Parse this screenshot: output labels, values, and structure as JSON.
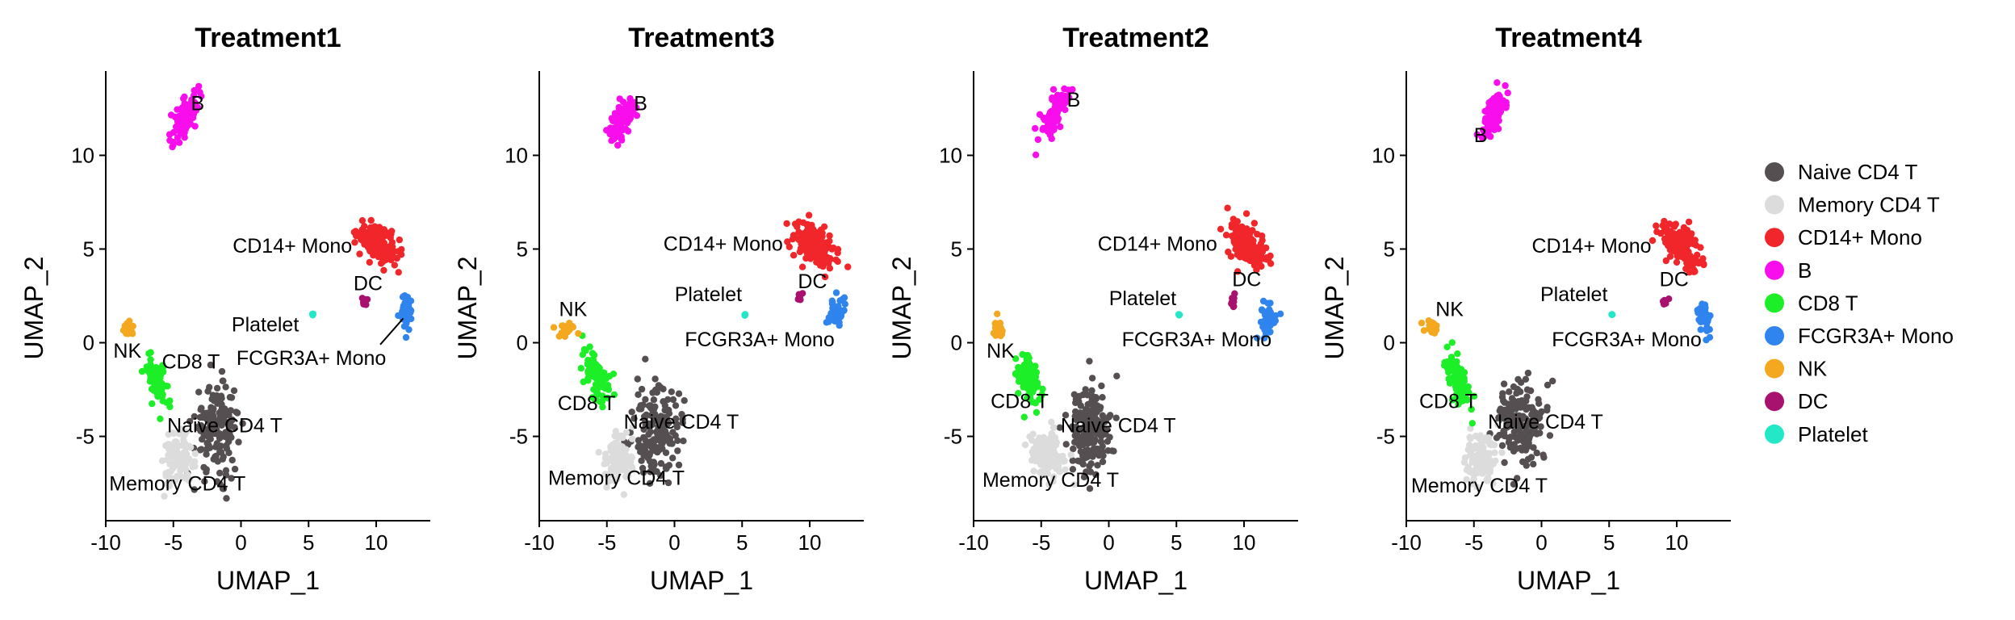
{
  "chart_data": {
    "type": "scatter",
    "xlabel": "UMAP_1",
    "ylabel": "UMAP_2",
    "xlim": [
      -10,
      14
    ],
    "ylim": [
      -9.5,
      14.5
    ],
    "xticks": [
      -10,
      -5,
      0,
      5,
      10
    ],
    "yticks": [
      -5,
      0,
      5,
      10
    ],
    "legend_position": "right",
    "legend": [
      {
        "name": "Naive CD4 T",
        "color": "#554f52"
      },
      {
        "name": "Memory CD4 T",
        "color": "#dcdcdc"
      },
      {
        "name": "CD14+ Mono",
        "color": "#f0262b"
      },
      {
        "name": "B",
        "color": "#f80dec"
      },
      {
        "name": "CD8 T",
        "color": "#1cef27"
      },
      {
        "name": "FCGR3A+ Mono",
        "color": "#2f84ee"
      },
      {
        "name": "NK",
        "color": "#f3a820"
      },
      {
        "name": "DC",
        "color": "#a8126e"
      },
      {
        "name": "Platelet",
        "color": "#22e8c8"
      }
    ],
    "panels": [
      {
        "title": "Treatment1",
        "clusters": [
          {
            "name": "Naive CD4 T",
            "center": [
              -1.8,
              -4.5
            ],
            "spread": [
              1.5,
              2.2
            ],
            "n": 170
          },
          {
            "name": "Memory CD4 T",
            "center": [
              -4.6,
              -6.3
            ],
            "spread": [
              1.0,
              1.2
            ],
            "n": 110
          },
          {
            "name": "CD14+ Mono",
            "center": [
              10.2,
              5.3
            ],
            "spread": [
              1.4,
              0.9
            ],
            "n": 140
          },
          {
            "name": "B",
            "center": [
              -4.2,
              12.0
            ],
            "spread": [
              0.9,
              0.9
            ],
            "n": 100
          },
          {
            "name": "CD8 T",
            "center": [
              -6.2,
              -2.1
            ],
            "spread": [
              0.8,
              1.1
            ],
            "n": 80
          },
          {
            "name": "FCGR3A+ Mono",
            "center": [
              12.2,
              1.6
            ],
            "spread": [
              0.4,
              0.8
            ],
            "n": 45
          },
          {
            "name": "NK",
            "center": [
              -8.3,
              0.8
            ],
            "spread": [
              0.35,
              0.4
            ],
            "n": 25
          },
          {
            "name": "DC",
            "center": [
              9.2,
              2.3
            ],
            "spread": [
              0.2,
              0.3
            ],
            "n": 8
          },
          {
            "name": "Platelet",
            "center": [
              5.3,
              1.5
            ],
            "spread": [
              0.05,
              0.05
            ],
            "n": 3
          }
        ],
        "labels": [
          {
            "text": "B",
            "x": -3.2,
            "y": 12.8
          },
          {
            "text": "CD14+ Mono",
            "x": 3.8,
            "y": 5.2
          },
          {
            "text": "DC",
            "x": 9.4,
            "y": 3.2
          },
          {
            "text": "Platelet",
            "x": 1.8,
            "y": 1.0
          },
          {
            "text": "NK",
            "x": -8.4,
            "y": -0.4
          },
          {
            "text": "CD8 T",
            "x": -3.7,
            "y": -1.0
          },
          {
            "text": "FCGR3A+ Mono",
            "x": 5.2,
            "y": -0.8
          },
          {
            "text": "Naive CD4 T",
            "x": -1.2,
            "y": -4.4
          },
          {
            "text": "Memory CD4 T",
            "x": -4.7,
            "y": -7.5
          }
        ],
        "label_line": {
          "from": [
            10.3,
            -0.1
          ],
          "to": [
            12.0,
            1.3
          ]
        }
      },
      {
        "title": "Treatment3",
        "clusters": [
          {
            "name": "Naive CD4 T",
            "center": [
              -1.3,
              -4.7
            ],
            "spread": [
              1.5,
              2.2
            ],
            "n": 170
          },
          {
            "name": "Memory CD4 T",
            "center": [
              -4.2,
              -6.1
            ],
            "spread": [
              1.0,
              1.2
            ],
            "n": 110
          },
          {
            "name": "CD14+ Mono",
            "center": [
              10.4,
              5.2
            ],
            "spread": [
              1.4,
              1.0
            ],
            "n": 140
          },
          {
            "name": "B",
            "center": [
              -3.8,
              12.0
            ],
            "spread": [
              0.9,
              0.9
            ],
            "n": 100
          },
          {
            "name": "CD8 T",
            "center": [
              -5.8,
              -1.8
            ],
            "spread": [
              0.9,
              1.2
            ],
            "n": 80
          },
          {
            "name": "FCGR3A+ Mono",
            "center": [
              12.0,
              1.6
            ],
            "spread": [
              0.6,
              0.6
            ],
            "n": 45
          },
          {
            "name": "NK",
            "center": [
              -8.0,
              0.8
            ],
            "spread": [
              0.5,
              0.4
            ],
            "n": 25
          },
          {
            "name": "DC",
            "center": [
              9.3,
              2.5
            ],
            "spread": [
              0.2,
              0.3
            ],
            "n": 8
          },
          {
            "name": "Platelet",
            "center": [
              5.2,
              1.5
            ],
            "spread": [
              0.05,
              0.05
            ],
            "n": 3
          }
        ],
        "labels": [
          {
            "text": "B",
            "x": -2.5,
            "y": 12.8
          },
          {
            "text": "CD14+ Mono",
            "x": 3.6,
            "y": 5.3
          },
          {
            "text": "Platelet",
            "x": 2.5,
            "y": 2.6
          },
          {
            "text": "DC",
            "x": 10.2,
            "y": 3.3
          },
          {
            "text": "NK",
            "x": -7.5,
            "y": 1.8
          },
          {
            "text": "FCGR3A+ Mono",
            "x": 6.3,
            "y": 0.2
          },
          {
            "text": "CD8 T",
            "x": -6.5,
            "y": -3.2
          },
          {
            "text": "Naive CD4 T",
            "x": 0.5,
            "y": -4.2
          },
          {
            "text": "Memory CD4 T",
            "x": -4.3,
            "y": -7.2
          }
        ]
      },
      {
        "title": "Treatment2",
        "clusters": [
          {
            "name": "Naive CD4 T",
            "center": [
              -1.4,
              -4.6
            ],
            "spread": [
              1.5,
              2.2
            ],
            "n": 170
          },
          {
            "name": "Memory CD4 T",
            "center": [
              -4.5,
              -6.0
            ],
            "spread": [
              1.1,
              1.2
            ],
            "n": 110
          },
          {
            "name": "CD14+ Mono",
            "center": [
              10.3,
              5.1
            ],
            "spread": [
              1.4,
              1.0
            ],
            "n": 140
          },
          {
            "name": "B",
            "center": [
              -4.0,
              12.2
            ],
            "spread": [
              0.9,
              0.9
            ],
            "n": 100
          },
          {
            "name": "CD8 T",
            "center": [
              -6.0,
              -2.0
            ],
            "spread": [
              0.8,
              1.2
            ],
            "n": 80
          },
          {
            "name": "FCGR3A+ Mono",
            "center": [
              11.9,
              1.2
            ],
            "spread": [
              0.5,
              0.9
            ],
            "n": 45
          },
          {
            "name": "NK",
            "center": [
              -8.2,
              0.8
            ],
            "spread": [
              0.4,
              0.4
            ],
            "n": 25
          },
          {
            "name": "DC",
            "center": [
              9.2,
              2.3
            ],
            "spread": [
              0.2,
              0.3
            ],
            "n": 8
          },
          {
            "name": "Platelet",
            "center": [
              5.2,
              1.5
            ],
            "spread": [
              0.05,
              0.05
            ],
            "n": 3
          }
        ],
        "labels": [
          {
            "text": "B",
            "x": -2.6,
            "y": 13.0
          },
          {
            "text": "CD14+ Mono",
            "x": 3.6,
            "y": 5.3
          },
          {
            "text": "Platelet",
            "x": 2.5,
            "y": 2.4
          },
          {
            "text": "DC",
            "x": 10.2,
            "y": 3.4
          },
          {
            "text": "NK",
            "x": -8.0,
            "y": -0.4
          },
          {
            "text": "FCGR3A+ Mono",
            "x": 6.5,
            "y": 0.2
          },
          {
            "text": "CD8 T",
            "x": -6.6,
            "y": -3.1
          },
          {
            "text": "Naive CD4 T",
            "x": 0.7,
            "y": -4.4
          },
          {
            "text": "Memory CD4 T",
            "x": -4.3,
            "y": -7.3
          }
        ]
      },
      {
        "title": "Treatment4",
        "clusters": [
          {
            "name": "Naive CD4 T",
            "center": [
              -1.6,
              -4.3
            ],
            "spread": [
              1.5,
              2.2
            ],
            "n": 170
          },
          {
            "name": "Memory CD4 T",
            "center": [
              -4.4,
              -6.2
            ],
            "spread": [
              1.0,
              1.2
            ],
            "n": 110
          },
          {
            "name": "CD14+ Mono",
            "center": [
              10.2,
              5.3
            ],
            "spread": [
              1.4,
              0.9
            ],
            "n": 140
          },
          {
            "name": "B",
            "center": [
              -3.6,
              12.2
            ],
            "spread": [
              0.9,
              0.9
            ],
            "n": 100
          },
          {
            "name": "CD8 T",
            "center": [
              -6.2,
              -2.0
            ],
            "spread": [
              0.8,
              1.1
            ],
            "n": 80
          },
          {
            "name": "FCGR3A+ Mono",
            "center": [
              12.0,
              1.4
            ],
            "spread": [
              0.45,
              0.8
            ],
            "n": 45
          },
          {
            "name": "NK",
            "center": [
              -8.2,
              0.8
            ],
            "spread": [
              0.5,
              0.4
            ],
            "n": 25
          },
          {
            "name": "DC",
            "center": [
              9.2,
              2.3
            ],
            "spread": [
              0.2,
              0.3
            ],
            "n": 8
          },
          {
            "name": "Platelet",
            "center": [
              5.2,
              1.5
            ],
            "spread": [
              0.05,
              0.05
            ],
            "n": 3
          }
        ],
        "labels": [
          {
            "text": "B",
            "x": -4.5,
            "y": 11.1
          },
          {
            "text": "CD14+ Mono",
            "x": 3.7,
            "y": 5.2
          },
          {
            "text": "Platelet",
            "x": 2.4,
            "y": 2.6
          },
          {
            "text": "DC",
            "x": 9.8,
            "y": 3.4
          },
          {
            "text": "NK",
            "x": -6.8,
            "y": 1.8
          },
          {
            "text": "FCGR3A+ Mono",
            "x": 6.3,
            "y": 0.2
          },
          {
            "text": "CD8 T",
            "x": -6.9,
            "y": -3.1
          },
          {
            "text": "Naive CD4 T",
            "x": 0.3,
            "y": -4.2
          },
          {
            "text": "Memory CD4 T",
            "x": -4.6,
            "y": -7.6
          }
        ]
      }
    ]
  }
}
